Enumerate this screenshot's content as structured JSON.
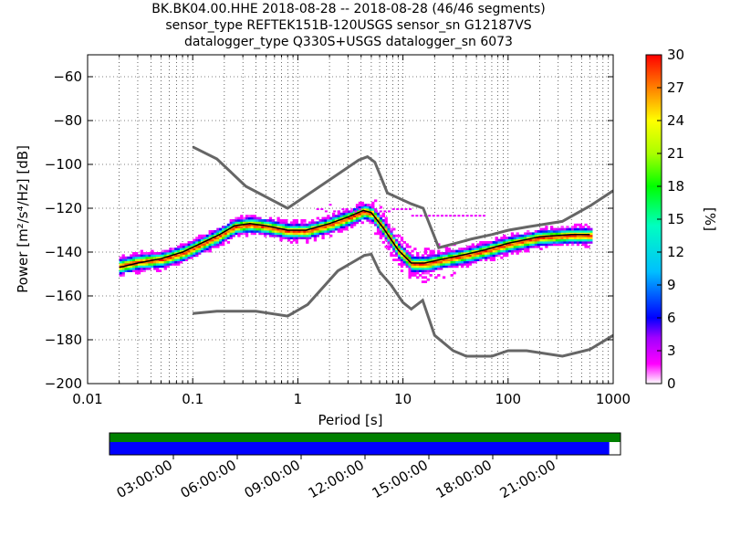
{
  "chart_data": {
    "type": "heatmap",
    "title_lines": [
      "BK.BK04.00.HHE   2018-08-28 -- 2018-08-28  (46/46 segments)",
      "sensor_type REFTEK151B-120USGS sensor_sn G12187VS",
      "datalogger_type Q330S+USGS datalogger_sn 6073"
    ],
    "xlabel": "Period [s]",
    "ylabel": "Power [m²/s⁴/Hz] [dB]",
    "x_scale": "log",
    "xlim": [
      0.01,
      1000
    ],
    "ylim": [
      -200,
      -50
    ],
    "x_ticks": [
      {
        "value": 0.01,
        "label": "0.01"
      },
      {
        "value": 0.1,
        "label": "0.1"
      },
      {
        "value": 1,
        "label": "1"
      },
      {
        "value": 10,
        "label": "10"
      },
      {
        "value": 100,
        "label": "100"
      },
      {
        "value": 1000,
        "label": "1000"
      }
    ],
    "y_ticks": [
      -60,
      -80,
      -100,
      -120,
      -140,
      -160,
      -180,
      -200
    ],
    "grid": true,
    "colorbar": {
      "label": "[%]",
      "min": 0,
      "max": 30,
      "ticks": [
        0,
        3,
        6,
        9,
        12,
        15,
        18,
        21,
        24,
        27,
        30
      ]
    },
    "nhnm": [
      [
        0.1,
        -92
      ],
      [
        0.17,
        -97.5
      ],
      [
        0.32,
        -110
      ],
      [
        0.8,
        -120
      ],
      [
        3.8,
        -98
      ],
      [
        4.6,
        -96.5
      ],
      [
        5.4,
        -99
      ],
      [
        7.1,
        -113
      ],
      [
        12,
        -118
      ],
      [
        15.6,
        -120
      ],
      [
        21.9,
        -138
      ],
      [
        31.6,
        -136
      ],
      [
        45,
        -134
      ],
      [
        70,
        -132
      ],
      [
        101,
        -130
      ],
      [
        154,
        -128.5
      ],
      [
        328,
        -126
      ],
      [
        600,
        -119
      ],
      [
        1000,
        -112
      ]
    ],
    "nlnm": [
      [
        0.1,
        -168
      ],
      [
        0.17,
        -167
      ],
      [
        0.4,
        -167
      ],
      [
        0.8,
        -169.2
      ],
      [
        1.24,
        -163.9
      ],
      [
        2.4,
        -148.6
      ],
      [
        4.3,
        -141.5
      ],
      [
        5,
        -141
      ],
      [
        6,
        -149
      ],
      [
        7.7,
        -155
      ],
      [
        10,
        -163
      ],
      [
        12,
        -166
      ],
      [
        15.4,
        -162
      ],
      [
        20,
        -178
      ],
      [
        30,
        -185
      ],
      [
        40,
        -187.5
      ],
      [
        70,
        -187.5
      ],
      [
        100,
        -185
      ],
      [
        150,
        -185
      ],
      [
        329,
        -187.5
      ],
      [
        600,
        -184.4
      ],
      [
        1000,
        -178
      ]
    ],
    "mode_curve": [
      [
        0.02,
        -147
      ],
      [
        0.03,
        -145
      ],
      [
        0.05,
        -144
      ],
      [
        0.08,
        -141
      ],
      [
        0.12,
        -137
      ],
      [
        0.18,
        -133
      ],
      [
        0.25,
        -129
      ],
      [
        0.35,
        -128
      ],
      [
        0.5,
        -129
      ],
      [
        0.8,
        -131
      ],
      [
        1.2,
        -131
      ],
      [
        2,
        -128
      ],
      [
        3,
        -125
      ],
      [
        4.2,
        -122
      ],
      [
        5,
        -123
      ],
      [
        6.5,
        -130
      ],
      [
        9,
        -140
      ],
      [
        12,
        -146
      ],
      [
        16,
        -146
      ],
      [
        25,
        -144
      ],
      [
        40,
        -142
      ],
      [
        60,
        -140
      ],
      [
        100,
        -137
      ],
      [
        200,
        -134
      ],
      [
        400,
        -133
      ],
      [
        600,
        -133
      ]
    ],
    "mean_curve": [
      [
        0.02,
        -147
      ],
      [
        0.03,
        -145
      ],
      [
        0.05,
        -143
      ],
      [
        0.08,
        -140
      ],
      [
        0.12,
        -136
      ],
      [
        0.18,
        -132
      ],
      [
        0.25,
        -128
      ],
      [
        0.35,
        -127
      ],
      [
        0.5,
        -128
      ],
      [
        0.8,
        -130
      ],
      [
        1.2,
        -130
      ],
      [
        2,
        -127
      ],
      [
        3,
        -124
      ],
      [
        4.2,
        -121
      ],
      [
        5,
        -122
      ],
      [
        6.5,
        -129
      ],
      [
        9,
        -139
      ],
      [
        12,
        -145
      ],
      [
        16,
        -145
      ],
      [
        25,
        -143
      ],
      [
        40,
        -141
      ],
      [
        60,
        -139
      ],
      [
        100,
        -136
      ],
      [
        200,
        -133
      ],
      [
        400,
        -132
      ],
      [
        600,
        -132
      ]
    ],
    "timeline": {
      "tick_labels": [
        "03:00:00",
        "06:00:00",
        "09:00:00",
        "12:00:00",
        "15:00:00",
        "18:00:00",
        "21:00:00"
      ],
      "start_hour": 0,
      "end_hour": 24,
      "data_coverage_fraction": 1.0,
      "psd_coverage_fraction": 0.978,
      "data_color": "#008000",
      "psd_color": "#0000ff"
    }
  }
}
